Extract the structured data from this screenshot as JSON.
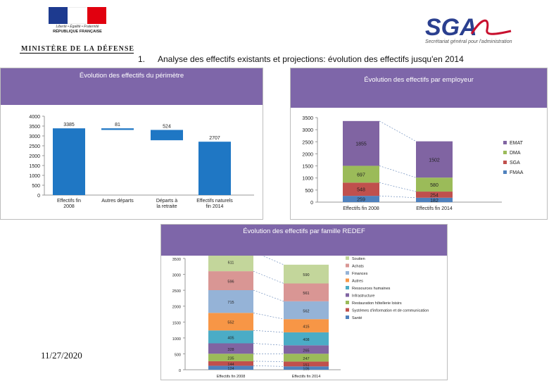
{
  "header": {
    "motto": "Liberté • Égalité • Fraternité",
    "republic": "RÉPUBLIQUE FRANÇAISE",
    "ministry": "MINISTÈRE DE LA DÉFENSE",
    "logo_text": "SGA",
    "logo_subtitle": "Secrétariat général pour l'administration",
    "slide_number": "1.",
    "slide_title": "Analyse des effectifs existants et projections: évolution des effectifs jusqu'en 2014"
  },
  "footer": {
    "date": "11/27/2020"
  },
  "colors": {
    "panel_header": "#7e66a9",
    "waterfall_bar": "#1f77c4",
    "flag_blue": "#1d3a8f",
    "flag_red": "#e1000f",
    "sga_blue": "#2a3f8f",
    "sga_red": "#c8102e"
  },
  "chart_data": [
    {
      "type": "bar",
      "subtype": "waterfall",
      "title": "Évolution des effectifs du périmètre",
      "categories": [
        "Effectifs fin 2008",
        "Autres départs",
        "Départs à la retraite",
        "Effectifs naturels fin 2014"
      ],
      "values": [
        3385,
        -81,
        -524,
        2707
      ],
      "bar_labels": [
        "3385",
        "81",
        "524",
        "2707"
      ],
      "yticks": [
        "0",
        "500",
        "1000",
        "1500",
        "2000",
        "2500",
        "3000",
        "3500",
        "4000"
      ],
      "ylim": [
        0,
        4000
      ]
    },
    {
      "type": "bar",
      "subtype": "stacked",
      "title": "Évolution des effectifs par employeur",
      "categories": [
        "Effectifs fin 2008",
        "Effectifs fin 2014"
      ],
      "series": [
        {
          "name": "FMAA",
          "color": "#4f81bd",
          "values": [
            259,
            182
          ]
        },
        {
          "name": "SGA",
          "color": "#c0504d",
          "values": [
            548,
            254
          ]
        },
        {
          "name": "DMA",
          "color": "#9bbb59",
          "values": [
            697,
            580
          ]
        },
        {
          "name": "EMAT",
          "color": "#8064a2",
          "values": [
            1855,
            1502
          ]
        }
      ],
      "series_labels": [
        [
          "259",
          "182"
        ],
        [
          "548",
          "254"
        ],
        [
          "697",
          "580"
        ],
        [
          "1855",
          "1502"
        ]
      ],
      "yticks": [
        "0",
        "500",
        "1000",
        "1500",
        "2000",
        "2500",
        "3000",
        "3500"
      ],
      "ylim": [
        0,
        3500
      ]
    },
    {
      "type": "bar",
      "subtype": "stacked",
      "title": "Évolution des effectifs par famille REDEF",
      "categories": [
        "Effectifs fin 2008",
        "Effectifs fin 2014"
      ],
      "series": [
        {
          "name": "Santé",
          "color": "#4f81bd",
          "values": [
            124,
            105
          ]
        },
        {
          "name": "Systèmes d'information et de communication",
          "color": "#c0504d",
          "values": [
            144,
            151
          ]
        },
        {
          "name": "Restauration hôtellerie loisirs",
          "color": "#9bbb59",
          "values": [
            235,
            247
          ]
        },
        {
          "name": "Infrastructure",
          "color": "#8064a2",
          "values": [
            328,
            265
          ]
        },
        {
          "name": "Ressources humaines",
          "color": "#4bacc6",
          "values": [
            405,
            408
          ]
        },
        {
          "name": "Autres",
          "color": "#f79646",
          "values": [
            552,
            415
          ]
        },
        {
          "name": "Finances",
          "color": "#95b3d7",
          "values": [
            715,
            562
          ]
        },
        {
          "name": "Achats",
          "color": "#d99694",
          "values": [
            596,
            561
          ]
        },
        {
          "name": "Soutien",
          "color": "#c3d69b",
          "values": [
            611,
            590
          ]
        }
      ],
      "series_labels": [
        [
          "124",
          "105"
        ],
        [
          "144",
          "151"
        ],
        [
          "235",
          "247"
        ],
        [
          "328",
          "265"
        ],
        [
          "405",
          "408"
        ],
        [
          "552",
          "415"
        ],
        [
          "715",
          "562"
        ],
        [
          "596",
          "561"
        ],
        [
          "611",
          "590"
        ]
      ],
      "yticks": [
        "0",
        "500",
        "1000",
        "1500",
        "2000",
        "2500",
        "3000",
        "3500"
      ],
      "ylim": [
        0,
        3500
      ]
    }
  ]
}
